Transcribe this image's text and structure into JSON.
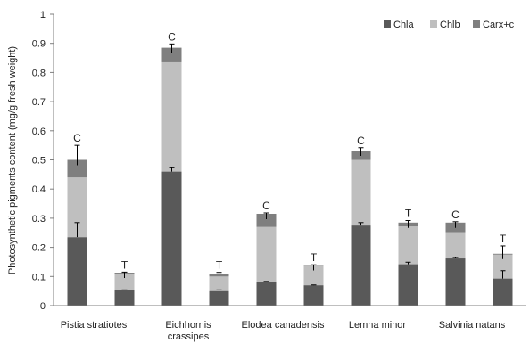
{
  "chart_data": {
    "type": "bar",
    "stacked": true,
    "title": "",
    "xlabel": "",
    "ylabel": "Photosynthetic pigments content  (mg/g fresh weight)",
    "ylim": [
      0,
      1
    ],
    "yticks": [
      "0",
      "0.1",
      "0.2",
      "0.3",
      "0.4",
      "0.5",
      "0.6",
      "0.7",
      "0.8",
      "0.9",
      "1"
    ],
    "grid": false,
    "legend_position": "top-right",
    "category_labels": [
      {
        "lines": [
          "Pistia stratiotes"
        ]
      },
      {
        "lines": [
          "Eichhornis",
          "crassipes"
        ]
      },
      {
        "lines": [
          "Elodea  canadensis"
        ]
      },
      {
        "lines": [
          "Lemna minor"
        ]
      },
      {
        "lines": [
          "Salvinia natans"
        ]
      }
    ],
    "bars": [
      {
        "annotation": "C",
        "values": [
          0.235,
          0.205,
          0.06
        ],
        "error": 0.05
      },
      {
        "annotation": "T",
        "values": [
          0.052,
          0.058,
          0.003
        ],
        "error": 0.002
      },
      {
        "annotation": "C",
        "values": [
          0.46,
          0.375,
          0.05
        ],
        "error": 0.013
      },
      {
        "annotation": "T",
        "values": [
          0.05,
          0.05,
          0.01
        ],
        "error": 0.004
      },
      {
        "annotation": "C",
        "values": [
          0.08,
          0.19,
          0.045
        ],
        "error": 0.003
      },
      {
        "annotation": "T",
        "values": [
          0.07,
          0.067,
          0.002
        ],
        "error": 0.001
      },
      {
        "annotation": "C",
        "values": [
          0.275,
          0.225,
          0.032
        ],
        "error": 0.01
      },
      {
        "annotation": "T",
        "values": [
          0.142,
          0.13,
          0.013
        ],
        "error": 0.007
      },
      {
        "annotation": "C",
        "values": [
          0.162,
          0.09,
          0.033
        ],
        "error": 0.003
      },
      {
        "annotation": "T",
        "values": [
          0.093,
          0.082,
          0.003
        ],
        "error": 0.027
      }
    ],
    "error_series": "total",
    "series": [
      {
        "name": "Chla",
        "color": "#595959"
      },
      {
        "name": "Chlb",
        "color": "#bfbfbf"
      },
      {
        "name": "Carx+c",
        "color": "#7f7f7f"
      }
    ]
  }
}
